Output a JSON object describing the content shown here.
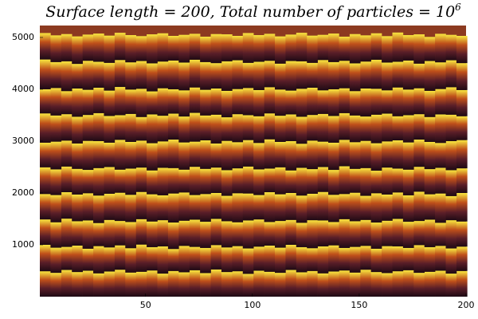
{
  "chart_data": {
    "type": "layers",
    "title": "Surface length = 200, Total number of particles = 10",
    "title_exponent": "6",
    "xlim": [
      0.5,
      200
    ],
    "ylim": [
      0,
      5230
    ],
    "xticks": [
      50,
      100,
      150,
      200
    ],
    "yticks": [
      1000,
      2000,
      3000,
      4000,
      5000
    ],
    "background": "#8c3a20",
    "band_colors": [
      "#1e0a14",
      "#5a1e28",
      "#c0501a",
      "#f8e840"
    ],
    "x": [
      3,
      8,
      13,
      18,
      23,
      28,
      33,
      38,
      43,
      48,
      53,
      58,
      63,
      68,
      73,
      78,
      83,
      88,
      93,
      98,
      103,
      108,
      113,
      118,
      123,
      128,
      133,
      138,
      143,
      148,
      153,
      158,
      163,
      168,
      173,
      178,
      183,
      188,
      193,
      198
    ],
    "series": [
      {
        "values": [
          490,
          460,
          515,
          475,
          500,
          450,
          485,
          520,
          465,
          480,
          505,
          445,
          495,
          470,
          510,
          455,
          525,
          475,
          490,
          440,
          500,
          480,
          460,
          515,
          470,
          495,
          450,
          485,
          505,
          465,
          520,
          475,
          455,
          490,
          510,
          460,
          480,
          500,
          445,
          495
        ]
      },
      {
        "values": [
          1000,
          945,
          960,
          985,
          925,
          975,
          950,
          990,
          935,
          1005,
          955,
          970,
          920,
          980,
          960,
          940,
          995,
          950,
          975,
          930,
          965,
          985,
          945,
          1000,
          955,
          935,
          970,
          990,
          940,
          960,
          980,
          925,
          975,
          970,
          940,
          995,
          955,
          980,
          930,
          965
        ]
      },
      {
        "values": [
          1490,
          1435,
          1505,
          1455,
          1470,
          1420,
          1480,
          1460,
          1440,
          1495,
          1450,
          1475,
          1430,
          1465,
          1485,
          1445,
          1500,
          1455,
          1435,
          1470,
          1490,
          1440,
          1460,
          1480,
          1425,
          1475,
          1470,
          1440,
          1495,
          1455,
          1480,
          1430,
          1465,
          1500,
          1445,
          1460,
          1485,
          1425,
          1475,
          1450
        ]
      },
      {
        "values": [
          1980,
          1960,
          2015,
          1970,
          1995,
          1950,
          1985,
          2005,
          1965,
          2020,
          1975,
          1955,
          1990,
          2010,
          1960,
          1980,
          2000,
          1945,
          1995,
          1990,
          1960,
          2015,
          1975,
          2000,
          1950,
          1985,
          2020,
          1965,
          1980,
          2005,
          1945,
          1995,
          1970,
          2010,
          1955,
          2025,
          1975,
          1990,
          1940,
          2000
        ]
      },
      {
        "values": [
          2495,
          2455,
          2510,
          2465,
          2445,
          2480,
          2500,
          2450,
          2470,
          2490,
          2435,
          2485,
          2480,
          2450,
          2505,
          2465,
          2490,
          2440,
          2475,
          2510,
          2455,
          2470,
          2495,
          2435,
          2485,
          2460,
          2500,
          2445,
          2515,
          2465,
          2480,
          2430,
          2490,
          2470,
          2450,
          2505,
          2460,
          2485,
          2440,
          2475
        ]
      },
      {
        "values": [
          2970,
          2990,
          3010,
          2955,
          3005,
          3000,
          2970,
          3025,
          2985,
          3010,
          2960,
          2995,
          3030,
          2975,
          2990,
          3015,
          2955,
          3005,
          2980,
          3020,
          2965,
          3035,
          2985,
          3000,
          2950,
          3010,
          2990,
          2970,
          3025,
          2980,
          3005,
          2960,
          2995,
          3015,
          2975,
          3030,
          2985,
          2965,
          3000,
          3020
        ]
      },
      {
        "values": [
          3535,
          3495,
          3520,
          3470,
          3505,
          3540,
          3485,
          3500,
          3525,
          3465,
          3515,
          3490,
          3530,
          3475,
          3545,
          3495,
          3510,
          3460,
          3520,
          3500,
          3480,
          3535,
          3490,
          3515,
          3470,
          3505,
          3525,
          3485,
          3540,
          3495,
          3475,
          3510,
          3530,
          3480,
          3500,
          3520,
          3465,
          3515,
          3510,
          3480
        ]
      },
      {
        "values": [
          4000,
          4025,
          3965,
          4015,
          3990,
          4030,
          3975,
          4045,
          3995,
          4010,
          3960,
          4020,
          4000,
          3980,
          4035,
          3990,
          4015,
          3970,
          4005,
          4025,
          3985,
          4040,
          3995,
          3975,
          4010,
          4030,
          3980,
          4000,
          4020,
          3965,
          4015,
          4010,
          3980,
          4035,
          3995,
          4020,
          3970,
          4005,
          4040,
          3985
        ]
      },
      {
        "values": [
          4575,
          4525,
          4540,
          4490,
          4550,
          4530,
          4510,
          4565,
          4520,
          4545,
          4500,
          4535,
          4555,
          4515,
          4570,
          4525,
          4505,
          4540,
          4560,
          4510,
          4530,
          4550,
          4495,
          4545,
          4540,
          4510,
          4565,
          4525,
          4550,
          4500,
          4535,
          4570,
          4515,
          4530,
          4555,
          4495,
          4545,
          4520,
          4560,
          4505
        ]
      },
      {
        "values": [
          5085,
          5040,
          5065,
          5020,
          5055,
          5075,
          5035,
          5090,
          5045,
          5025,
          5060,
          5080,
          5030,
          5050,
          5070,
          5015,
          5065,
          5060,
          5030,
          5085,
          5045,
          5070,
          5020,
          5055,
          5090,
          5035,
          5050,
          5075,
          5015,
          5065,
          5040,
          5080,
          5025,
          5095,
          5045,
          5060,
          5010,
          5070,
          5050,
          5030
        ]
      }
    ]
  }
}
